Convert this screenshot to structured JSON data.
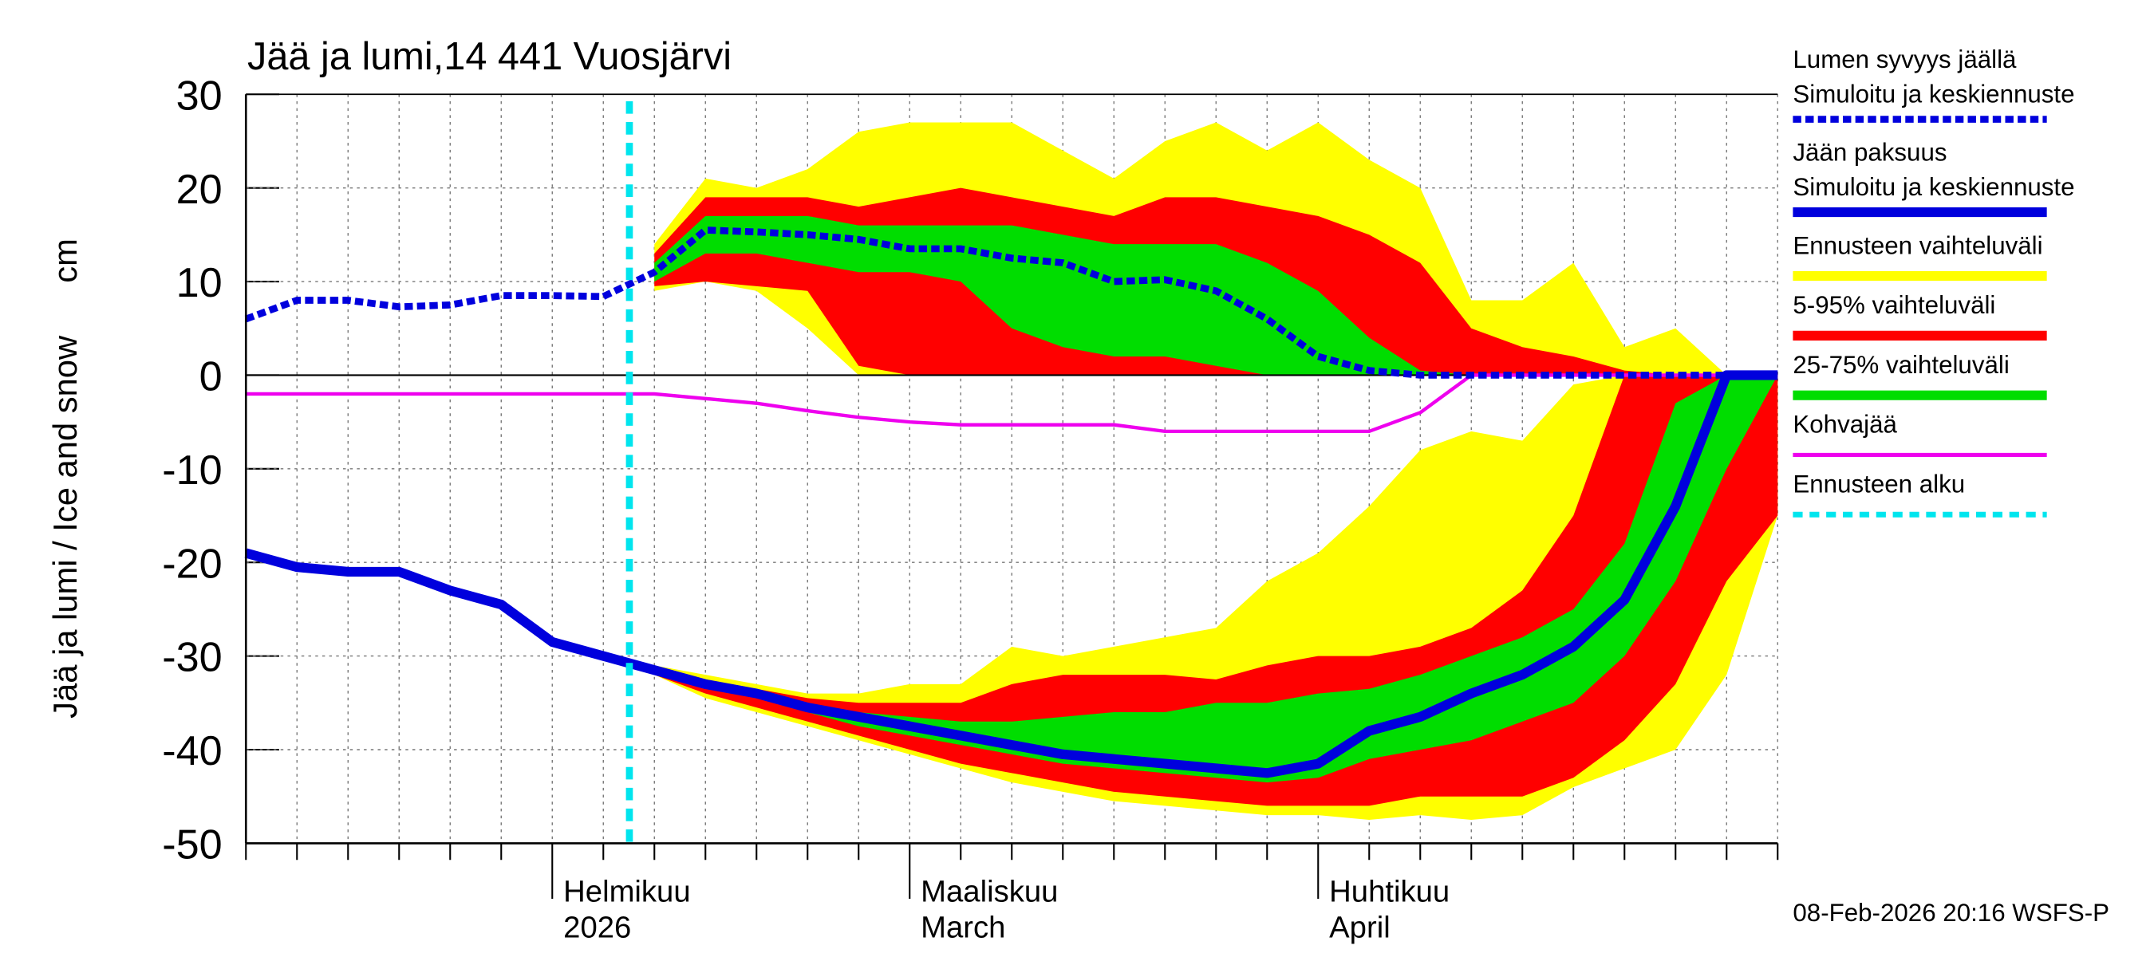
{
  "chart_data": {
    "type": "band",
    "title": "Jää ja lumi,14 441 Vuosjärvi",
    "ylabel": "Jää ja lumi / Ice and snow",
    "yunit": "cm",
    "footer": "08-Feb-2026 20:16 WSFS-P",
    "ylim": [
      -50,
      30
    ],
    "yticks": [
      30,
      20,
      10,
      0,
      -10,
      -20,
      -30,
      -40,
      -50
    ],
    "grid": true,
    "categories": [
      null,
      null,
      null,
      null,
      null,
      null,
      [
        "Helmikuu",
        "2026"
      ],
      null,
      null,
      null,
      null,
      null,
      null,
      [
        "Maaliskuu",
        "March"
      ],
      null,
      null,
      null,
      null,
      null,
      null,
      null,
      [
        "Huhtikuu",
        "April"
      ],
      null,
      null,
      null,
      null,
      null,
      null,
      null,
      null,
      null
    ],
    "series": [
      {
        "name": "Lumen syvyys jäällä",
        "subname": "Simuloitu ja keskiennuste",
        "color": "#0000dd",
        "style": "dashed",
        "values": [
          6,
          8,
          8,
          7.3,
          7.5,
          8.5,
          8.5,
          8.4,
          11,
          15.5,
          15.3,
          15,
          14.5,
          13.5,
          13.5,
          12.5,
          12,
          10,
          10.2,
          9,
          6,
          2,
          0.5,
          0,
          0,
          0,
          0,
          0,
          0,
          0,
          0
        ]
      },
      {
        "name": "Jään paksuus",
        "subname": "Simuloitu ja keskiennuste",
        "color": "#0000dd",
        "style": "thick",
        "values": [
          -19,
          -20.5,
          -21,
          -21,
          -23,
          -24.5,
          -28.5,
          -30,
          -31.5,
          -33,
          -34,
          -35.5,
          -36.5,
          -37.5,
          -38.5,
          -39.5,
          -40.5,
          -41,
          -41.5,
          -42,
          -42.5,
          -41.5,
          -38,
          -36.5,
          -34,
          -32,
          -29,
          -24,
          -14,
          0,
          0
        ]
      }
    ],
    "bands": [
      {
        "name": "Ennusteen vaihteluväli",
        "color": "#ffff00",
        "snow_high": [
          null,
          null,
          null,
          null,
          null,
          null,
          null,
          null,
          14,
          21,
          20,
          22,
          26,
          27,
          27,
          27,
          24,
          21,
          25,
          27,
          24,
          27,
          23,
          20,
          8,
          8,
          12,
          3,
          5,
          0,
          0
        ],
        "snow_low": [
          null,
          null,
          null,
          null,
          null,
          null,
          null,
          null,
          9,
          10,
          9,
          5,
          0,
          0,
          0,
          0,
          0,
          0,
          0,
          0,
          0,
          0,
          0,
          0,
          0,
          0,
          0,
          0,
          0,
          0,
          0
        ],
        "ice_high": [
          null,
          null,
          null,
          null,
          null,
          null,
          null,
          null,
          -31,
          -32,
          -33,
          -34,
          -34,
          -33,
          -33,
          -29,
          -30,
          -29,
          -28,
          -27,
          -22,
          -19,
          -14,
          -8,
          -6,
          -7,
          -1,
          0,
          0,
          0,
          0
        ],
        "ice_low": [
          null,
          null,
          null,
          null,
          null,
          null,
          null,
          null,
          -32,
          -34.5,
          -36,
          -37.5,
          -39,
          -40.5,
          -42,
          -43.5,
          -44.5,
          -45.5,
          -46,
          -46.5,
          -47,
          -47,
          -47.5,
          -47,
          -47.5,
          -47,
          -44,
          -42,
          -40,
          -32,
          -15
        ]
      },
      {
        "name": "5-95% vaihteluväli",
        "color": "#ff0000",
        "snow_high": [
          null,
          null,
          null,
          null,
          null,
          null,
          null,
          null,
          13,
          19,
          19,
          19,
          18,
          19,
          20,
          19,
          18,
          17,
          19,
          19,
          18,
          17,
          15,
          12,
          5,
          3,
          2,
          0.5,
          0,
          0,
          0
        ],
        "snow_low": [
          null,
          null,
          null,
          null,
          null,
          null,
          null,
          null,
          9.5,
          10,
          9.5,
          9,
          1,
          0,
          0,
          0,
          0,
          0,
          0,
          0,
          0,
          0,
          0,
          0,
          0,
          0,
          0,
          0,
          0,
          0,
          0
        ],
        "ice_high": [
          null,
          null,
          null,
          null,
          null,
          null,
          null,
          null,
          -31.5,
          -32.5,
          -33.5,
          -34.5,
          -35,
          -35,
          -35,
          -33,
          -32,
          -32,
          -32,
          -32.5,
          -31,
          -30,
          -30,
          -29,
          -27,
          -23,
          -15,
          0,
          0,
          0,
          0
        ],
        "ice_low": [
          null,
          null,
          null,
          null,
          null,
          null,
          null,
          null,
          -32,
          -34,
          -35.5,
          -37,
          -38.5,
          -40,
          -41.5,
          -42.5,
          -43.5,
          -44.5,
          -45,
          -45.5,
          -46,
          -46,
          -46,
          -45,
          -45,
          -45,
          -43,
          -39,
          -33,
          -22,
          -15
        ]
      },
      {
        "name": "25-75% vaihteluväli",
        "color": "#00dd00",
        "snow_high": [
          null,
          null,
          null,
          null,
          null,
          null,
          null,
          null,
          12,
          17,
          17,
          17,
          16,
          16,
          16,
          16,
          15,
          14,
          14,
          14,
          12,
          9,
          4,
          0.5,
          0,
          0,
          0,
          0,
          0,
          0,
          0
        ],
        "snow_low": [
          null,
          null,
          null,
          null,
          null,
          null,
          null,
          null,
          10,
          13,
          13,
          12,
          11,
          11,
          10,
          5,
          3,
          2,
          2,
          1,
          0,
          0,
          0,
          0,
          0,
          0,
          0,
          0,
          0,
          0,
          0
        ],
        "ice_high": [
          null,
          null,
          null,
          null,
          null,
          null,
          null,
          null,
          -31.5,
          -33,
          -34,
          -35,
          -36,
          -36.5,
          -37,
          -37,
          -36.5,
          -36,
          -36,
          -35,
          -35,
          -34,
          -33.5,
          -32,
          -30,
          -28,
          -25,
          -18,
          -3,
          0,
          0
        ],
        "ice_low": [
          null,
          null,
          null,
          null,
          null,
          null,
          null,
          null,
          -31.8,
          -33.5,
          -34.5,
          -36,
          -37.5,
          -38.5,
          -39.5,
          -40.5,
          -41.5,
          -42,
          -42.5,
          -43,
          -43.5,
          -43,
          -41,
          -40,
          -39,
          -37,
          -35,
          -30,
          -22,
          -10,
          0
        ]
      }
    ],
    "kohva": {
      "name": "Kohvajää",
      "color": "#ee00ee",
      "values": [
        -2,
        -2,
        -2,
        -2,
        -2,
        -2,
        -2,
        -2,
        -2,
        -2.5,
        -3,
        -3.8,
        -4.5,
        -5,
        -5.3,
        -5.3,
        -5.3,
        -5.3,
        -6,
        -6,
        -6,
        -6,
        -6,
        -4,
        0,
        0,
        0,
        0,
        0,
        0,
        0
      ]
    },
    "forecast_start": {
      "name": "Ennusteen alku",
      "color": "#00e5ee"
    }
  }
}
